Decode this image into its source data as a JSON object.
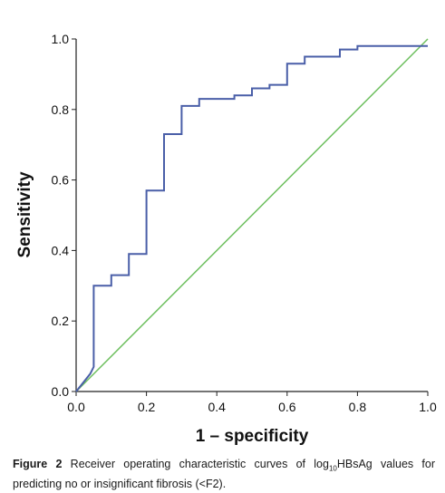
{
  "chart_data": {
    "type": "line",
    "xlabel": "1 – specificity",
    "ylabel": "Sensitivity",
    "xlim": [
      0,
      1
    ],
    "ylim": [
      0,
      1
    ],
    "x_ticks": [
      "0.0",
      "0.2",
      "0.4",
      "0.6",
      "0.8",
      "1.0"
    ],
    "y_ticks": [
      "0.0",
      "0.2",
      "0.4",
      "0.6",
      "0.8",
      "1.0"
    ],
    "grid": false,
    "legend": "none",
    "series": [
      {
        "color": "#4a5fa8",
        "x": [
          0,
          0.04,
          0.05,
          0.05,
          0.1,
          0.1,
          0.15,
          0.15,
          0.2,
          0.2,
          0.25,
          0.25,
          0.3,
          0.3,
          0.35,
          0.35,
          0.45,
          0.45,
          0.5,
          0.5,
          0.55,
          0.55,
          0.6,
          0.6,
          0.65,
          0.65,
          0.75,
          0.75,
          0.8,
          0.8,
          1.0
        ],
        "y": [
          0,
          0.05,
          0.07,
          0.3,
          0.3,
          0.33,
          0.33,
          0.39,
          0.39,
          0.57,
          0.57,
          0.73,
          0.73,
          0.81,
          0.81,
          0.83,
          0.83,
          0.84,
          0.84,
          0.86,
          0.86,
          0.87,
          0.87,
          0.93,
          0.93,
          0.95,
          0.95,
          0.97,
          0.97,
          0.98,
          0.98
        ]
      },
      {
        "color": "#6dbf5e",
        "x": [
          0,
          1
        ],
        "y": [
          0,
          1
        ]
      }
    ]
  },
  "caption": {
    "label": "Figure 2",
    "text_before": "Receiver operating characteristic curves of log",
    "subscript": "10",
    "text_after": "HBsAg values for predicting no or insignificant fibrosis (<F2)."
  }
}
